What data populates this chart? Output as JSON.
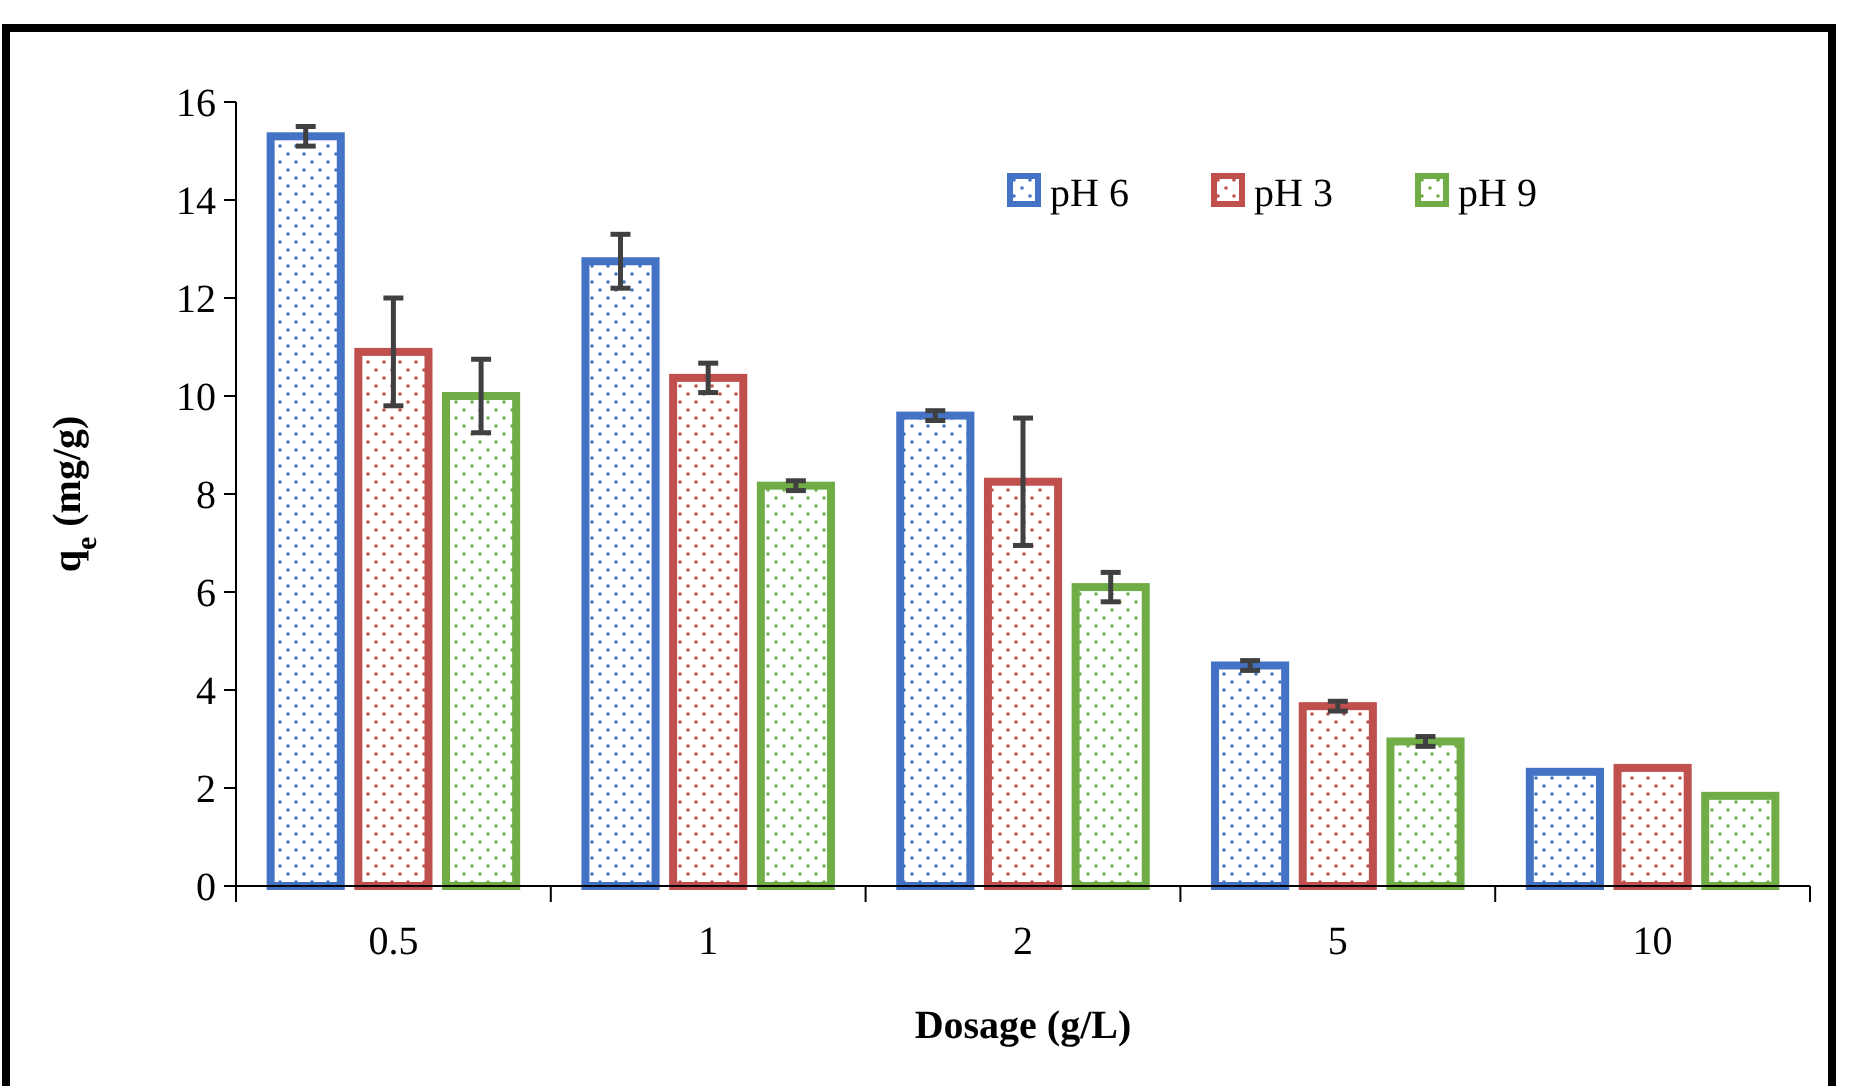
{
  "chart_data": {
    "type": "bar",
    "xlabel": "Dosage (g/L)",
    "ylabel": "q$_{e}$ (mg/g)",
    "categories": [
      "0.5",
      "1",
      "2",
      "5",
      "10"
    ],
    "ylim": [
      0,
      16
    ],
    "yticks": [
      0,
      2,
      4,
      6,
      8,
      10,
      12,
      14,
      16
    ],
    "grid": false,
    "legend": "top right",
    "series": [
      {
        "name": "pH 6",
        "color": "#4472c4",
        "values": [
          15.3,
          12.75,
          9.6,
          4.5,
          2.33
        ],
        "errors": [
          0.2,
          0.55,
          0.1,
          0.1,
          null
        ]
      },
      {
        "name": "pH 3",
        "color": "#c0504d",
        "values": [
          10.9,
          10.37,
          8.25,
          3.67,
          2.41
        ],
        "errors": [
          1.1,
          0.3,
          1.3,
          0.1,
          null
        ]
      },
      {
        "name": "pH 9",
        "color": "#70ad47",
        "values": [
          10.0,
          8.17,
          6.1,
          2.95,
          1.84
        ],
        "errors": [
          0.75,
          0.1,
          0.3,
          0.1,
          null
        ]
      }
    ]
  }
}
